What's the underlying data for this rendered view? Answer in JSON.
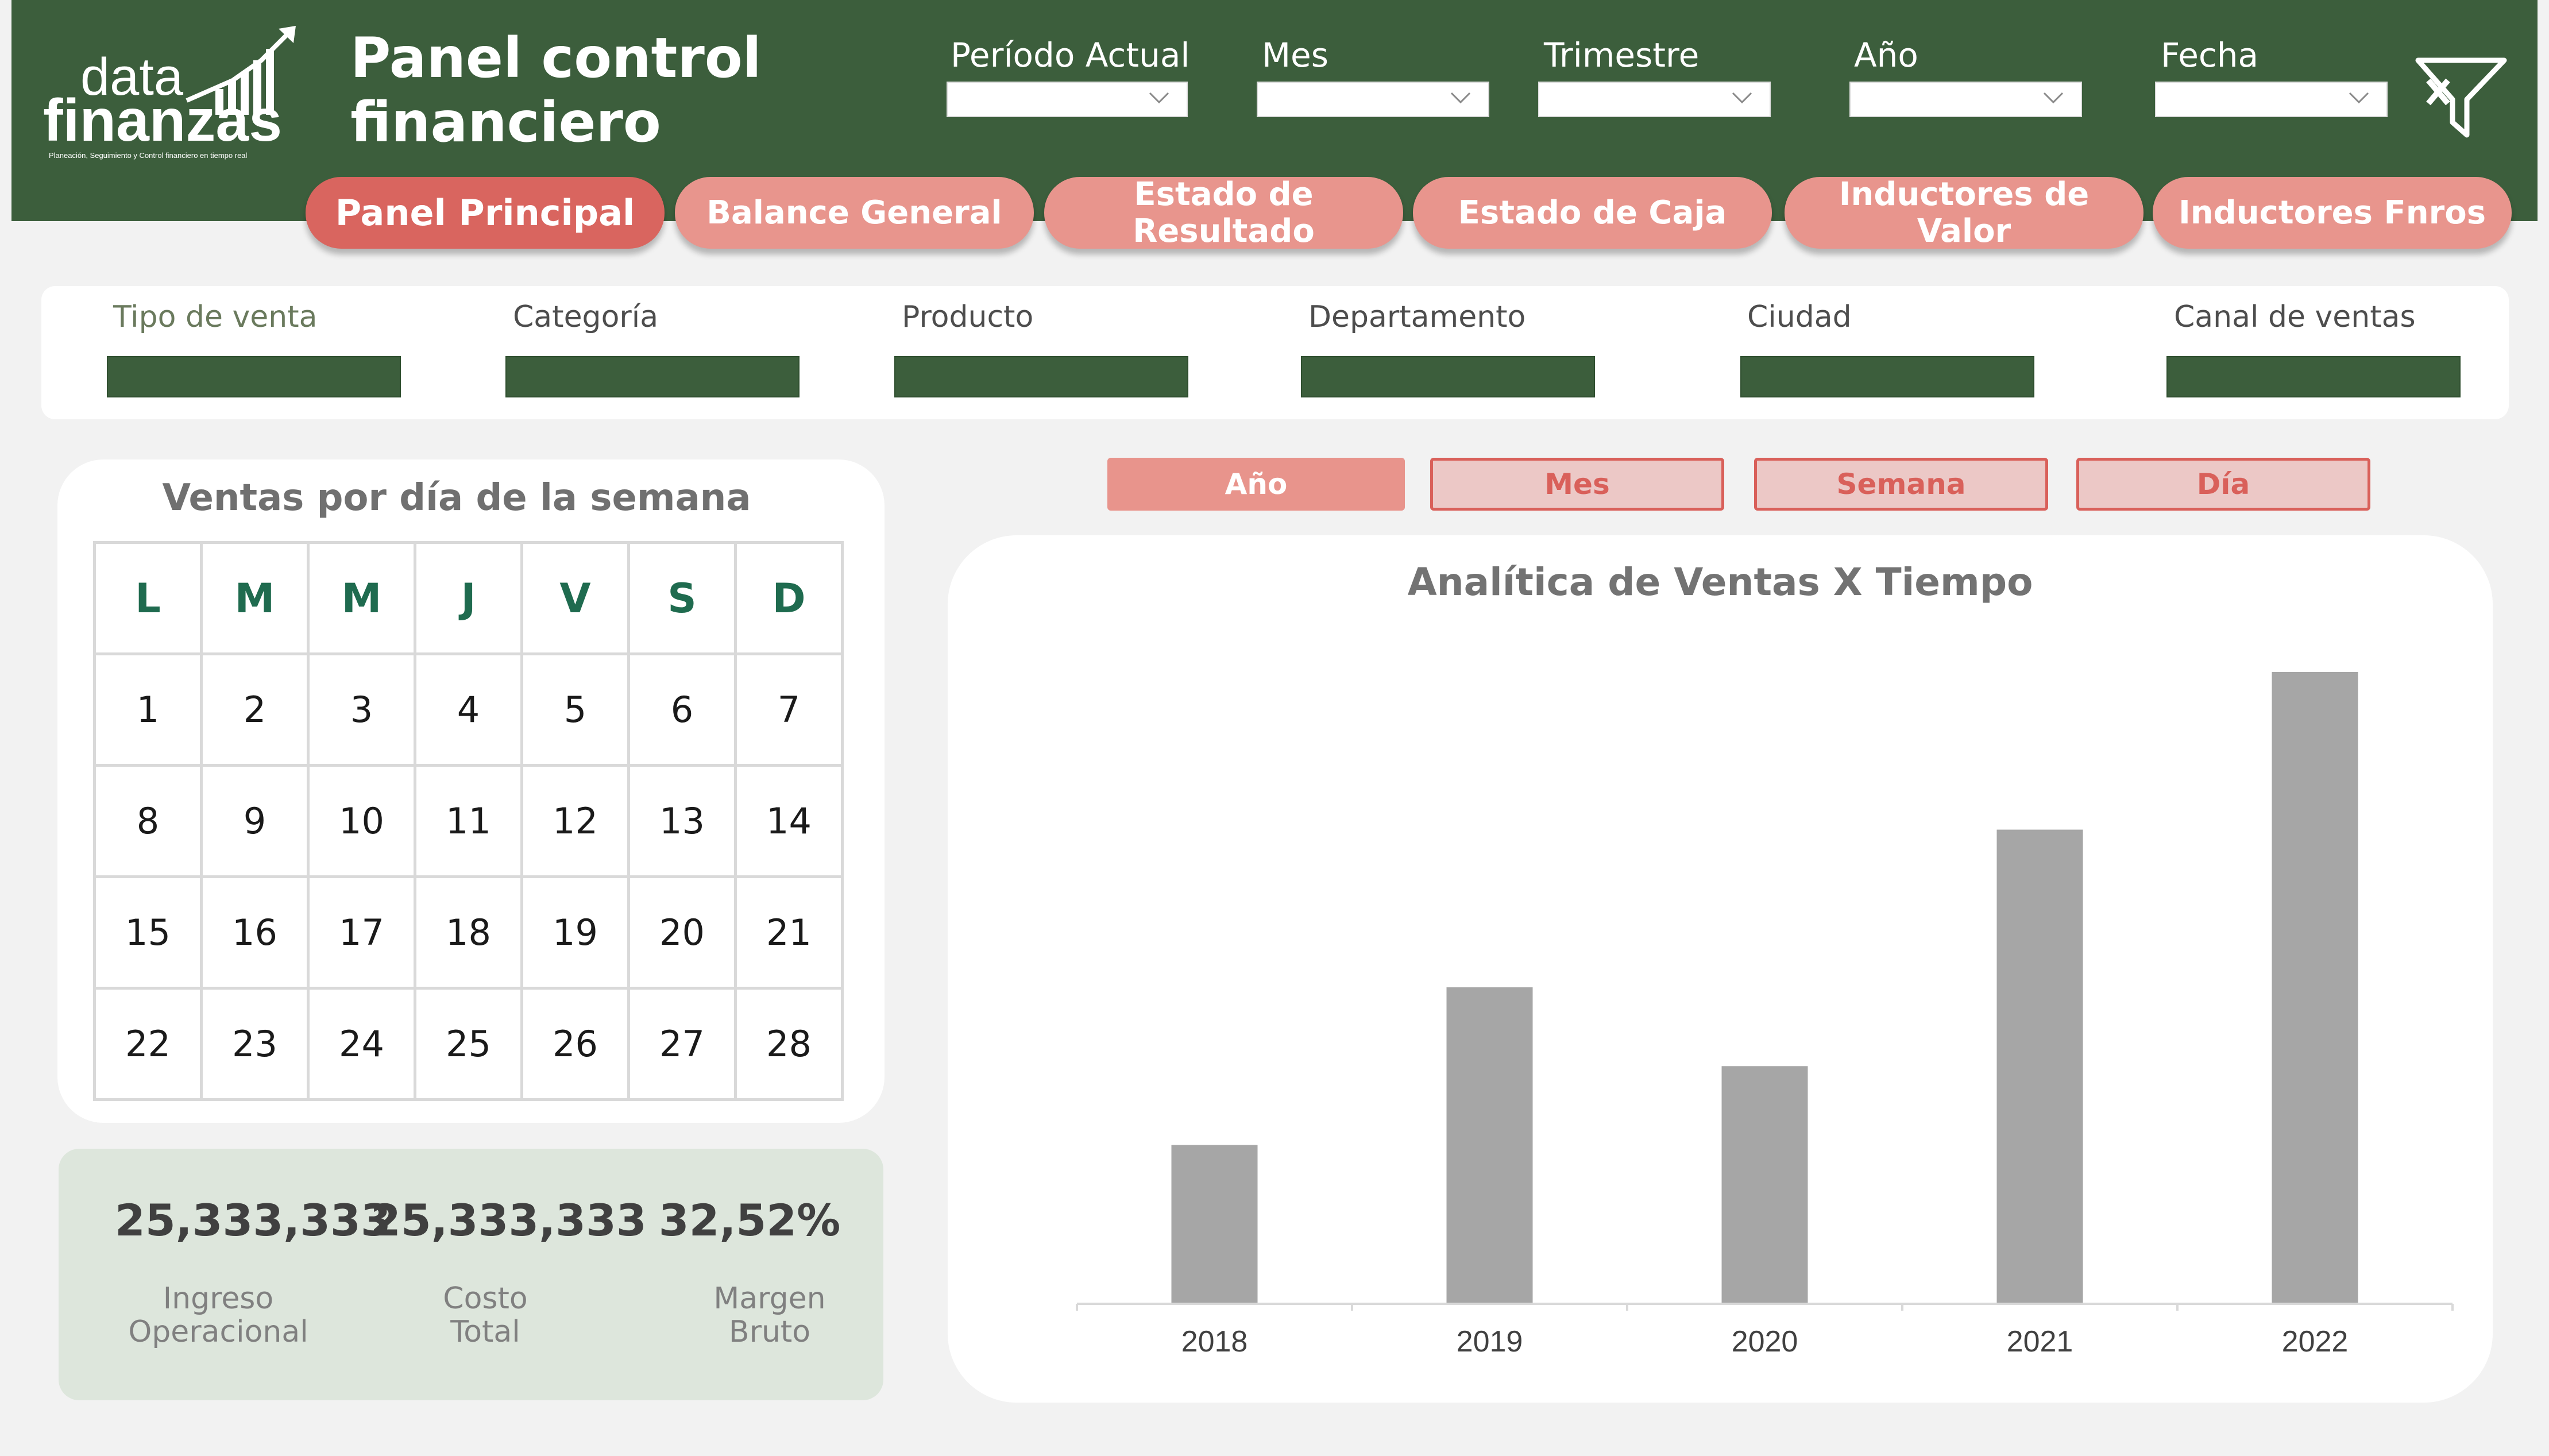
{
  "header": {
    "logo": {
      "word1": "data",
      "word2": "finanzas",
      "tagline": "Planeación, Seguimiento y Control financiero en tiempo real"
    },
    "title_line1": "Panel control",
    "title_line2": "financiero",
    "filters": [
      {
        "label": "Período Actual",
        "value": ""
      },
      {
        "label": "Mes",
        "value": ""
      },
      {
        "label": "Trimestre",
        "value": ""
      },
      {
        "label": "Año",
        "value": ""
      },
      {
        "label": "Fecha",
        "value": ""
      }
    ],
    "clear_icon": "clear-filter-icon"
  },
  "nav": {
    "tabs": [
      {
        "label": "Panel Principal",
        "active": true
      },
      {
        "label": "Balance General",
        "active": false
      },
      {
        "label": "Estado de Resultado",
        "active": false
      },
      {
        "label": "Estado de Caja",
        "active": false
      },
      {
        "label": "Inductores de\nValor",
        "active": false
      },
      {
        "label": "Inductores Fnros",
        "active": false
      }
    ]
  },
  "segments": [
    {
      "label": "Tipo de venta",
      "value": ""
    },
    {
      "label": "Categoría",
      "value": ""
    },
    {
      "label": "Producto",
      "value": ""
    },
    {
      "label": "Departamento",
      "value": ""
    },
    {
      "label": "Ciudad",
      "value": ""
    },
    {
      "label": "Canal de ventas",
      "value": ""
    }
  ],
  "calendar": {
    "title": "Ventas por día de la semana",
    "weekdays": [
      "L",
      "M",
      "M",
      "J",
      "V",
      "S",
      "D"
    ],
    "weeks": [
      [
        "1",
        "2",
        "3",
        "4",
        "5",
        "6",
        "7"
      ],
      [
        "8",
        "9",
        "10",
        "11",
        "12",
        "13",
        "14"
      ],
      [
        "15",
        "16",
        "17",
        "18",
        "19",
        "20",
        "21"
      ],
      [
        "22",
        "23",
        "24",
        "25",
        "26",
        "27",
        "28"
      ]
    ]
  },
  "kpis": [
    {
      "value": "25,333,333",
      "label": "Ingreso\nOperacional"
    },
    {
      "value": "25,333,333",
      "label": "Costo\nTotal"
    },
    {
      "value": "32,52%",
      "label": "Margen\nBruto"
    }
  ],
  "time_toggles": [
    {
      "label": "Año",
      "active": true
    },
    {
      "label": "Mes",
      "active": false
    },
    {
      "label": "Semana",
      "active": false
    },
    {
      "label": "Día",
      "active": false
    }
  ],
  "colors": {
    "header_green": "#3c5e3c",
    "tab_active": "#d9655f",
    "tab": "#e8958d",
    "bar": "#a6a6a6",
    "weekday": "#1f6b4f"
  },
  "chart_data": {
    "type": "bar",
    "title": "Analítica de Ventas X Tiempo",
    "categories": [
      "2018",
      "2019",
      "2020",
      "2021",
      "2022"
    ],
    "values": [
      25,
      50,
      37.5,
      75,
      100
    ],
    "ylim": [
      0,
      100
    ],
    "grid": false,
    "legend": "none"
  }
}
